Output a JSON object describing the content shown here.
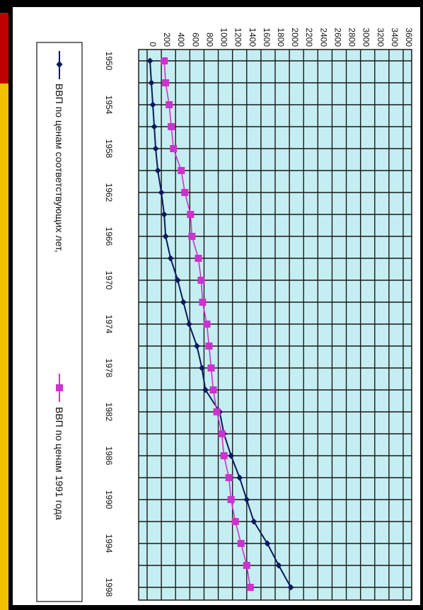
{
  "chart_data": {
    "type": "line",
    "orientation": "rotated-90",
    "categories": [
      "1950",
      "1954",
      "1958",
      "1962",
      "1966",
      "1970",
      "1974",
      "1978",
      "1982",
      "1986",
      "1990",
      "1994",
      "1998"
    ],
    "x": [
      1950,
      1952,
      1954,
      1956,
      1958,
      1960,
      1962,
      1964,
      1966,
      1968,
      1970,
      1972,
      1974,
      1976,
      1978,
      1980,
      1982,
      1984,
      1986,
      1988,
      1990,
      1992,
      1994,
      1996,
      1998
    ],
    "ylim": [
      0,
      3600
    ],
    "y_ticks": [
      "0",
      "200",
      "400",
      "600",
      "800",
      "1000",
      "1200",
      "1400",
      "1600",
      "1800",
      "2000",
      "2200",
      "2400",
      "2600",
      "2800",
      "3000",
      "3200",
      "3400",
      "3600"
    ],
    "series": [
      {
        "name": "ВВП по ценам соответствующих лет,",
        "color": "#0a1a5c",
        "marker": "diamond",
        "x": [
          1950,
          1952,
          1954,
          1956,
          1958,
          1960,
          1962,
          1964,
          1966,
          1968,
          1970,
          1972,
          1974,
          1976,
          1978,
          1980,
          1982,
          1984,
          1986,
          1988,
          1990,
          1992,
          1994,
          1996,
          1998
        ],
        "values": [
          40,
          60,
          80,
          100,
          120,
          150,
          200,
          240,
          260,
          330,
          430,
          510,
          590,
          700,
          770,
          820,
          1020,
          1080,
          1180,
          1300,
          1400,
          1500,
          1690,
          1850,
          2020
        ]
      },
      {
        "name": "ВВП по ценам 1991 года",
        "color": "#cc33cc",
        "marker": "square",
        "x": [
          1950,
          1952,
          1954,
          1956,
          1958,
          1960,
          1962,
          1964,
          1966,
          1968,
          1970,
          1972,
          1974,
          1976,
          1978,
          1980,
          1982,
          1984,
          1986,
          1988,
          1990,
          1992,
          1994,
          1996,
          1998
        ],
        "values": [
          240,
          260,
          310,
          340,
          370,
          480,
          530,
          610,
          630,
          720,
          760,
          780,
          840,
          870,
          900,
          930,
          980,
          1050,
          1080,
          1150,
          1180,
          1240,
          1320,
          1400,
          1450
        ]
      }
    ],
    "grid": true,
    "legend_position": "left"
  }
}
